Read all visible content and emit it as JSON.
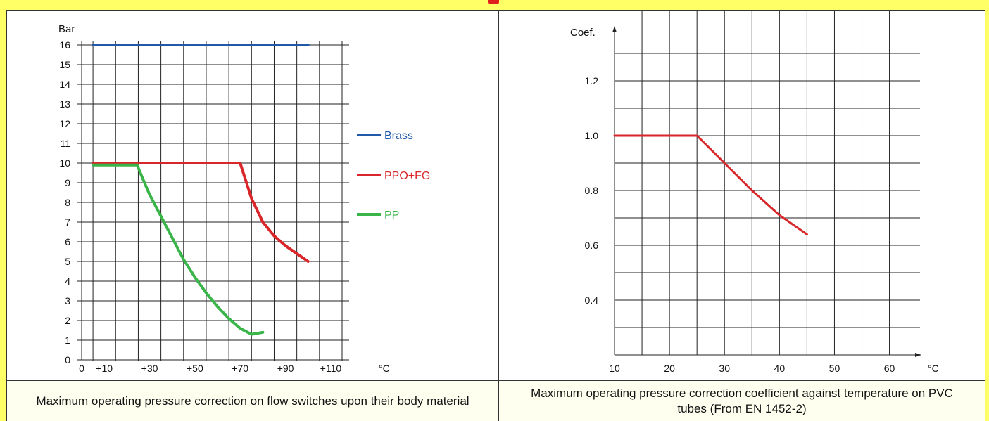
{
  "colors": {
    "background": "#ffff66",
    "brass": "#2059a8",
    "ppo_fg": "#d9262a",
    "pp": "#3ab54a",
    "grid": "#222222"
  },
  "captions": {
    "left": "Maximum operating pressure correction on flow switches upon their body material",
    "right": "Maximum operating pressure correction coefficient against temperature on PVC tubes (From EN 1452-2)"
  },
  "chart_data": [
    {
      "type": "line",
      "title": "",
      "ylabel": "Bar",
      "xunit": "°C",
      "xlim": [
        0,
        115
      ],
      "ylim": [
        0,
        16
      ],
      "x_tick_labels": [
        "0",
        "+10",
        "+30",
        "+50",
        "+70",
        "+90",
        "+110"
      ],
      "y_tick_labels": [
        "0",
        "1",
        "2",
        "3",
        "4",
        "5",
        "6",
        "7",
        "8",
        "9",
        "10",
        "11",
        "12",
        "13",
        "14",
        "15",
        "16"
      ],
      "grid": true,
      "legend": "right",
      "series": [
        {
          "name": "Brass",
          "color": "#2059a8",
          "x": [
            5,
            100
          ],
          "y": [
            16,
            16
          ]
        },
        {
          "name": "PPO+FG",
          "color": "#d9262a",
          "x": [
            5,
            70,
            75,
            80,
            85,
            90,
            95,
            100
          ],
          "y": [
            10,
            10,
            8.2,
            7.0,
            6.3,
            5.8,
            5.4,
            5.0
          ]
        },
        {
          "name": "PP",
          "color": "#3ab54a",
          "x": [
            5,
            24.5,
            27,
            30,
            35,
            40,
            45,
            50,
            55,
            60,
            65,
            70,
            75,
            80
          ],
          "y": [
            9.9,
            9.9,
            9.2,
            8.4,
            7.3,
            6.2,
            5.1,
            4.2,
            3.4,
            2.7,
            2.1,
            1.6,
            1.3,
            1.4
          ]
        }
      ]
    },
    {
      "type": "line",
      "title": "",
      "ylabel": "Coef.",
      "xunit": "°C",
      "xlim": [
        10,
        63
      ],
      "ylim": [
        0.2,
        1.4
      ],
      "x_tick_labels": [
        "10",
        "20",
        "30",
        "40",
        "50",
        "60"
      ],
      "y_tick_labels": [
        "0.4",
        "0.6",
        "0.8",
        "1.0",
        "1.2"
      ],
      "grid": true,
      "series": [
        {
          "color": "#d9262a",
          "x": [
            10,
            25,
            30,
            35,
            40,
            45
          ],
          "y": [
            1.0,
            1.0,
            0.9,
            0.8,
            0.71,
            0.64
          ]
        }
      ]
    }
  ]
}
